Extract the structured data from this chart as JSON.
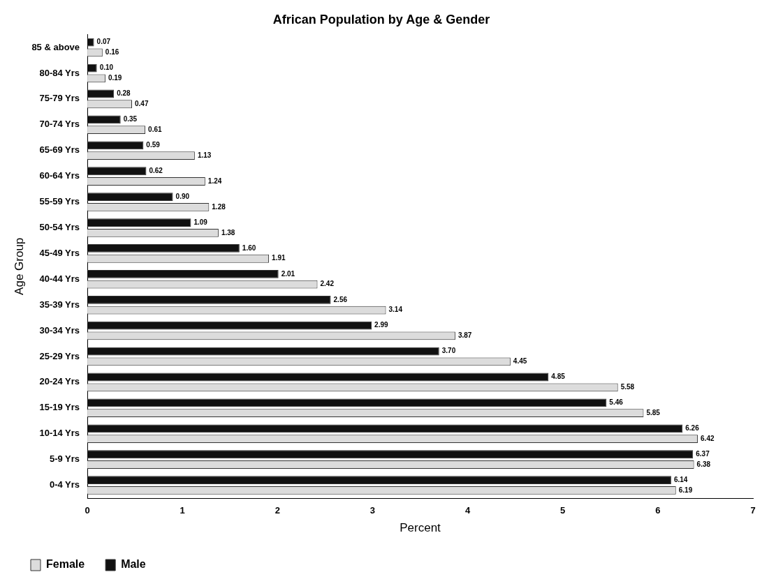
{
  "chart_data": {
    "type": "bar",
    "orientation": "horizontal",
    "title": "African Population by Age & Gender",
    "xlabel": "Percent",
    "ylabel": "Age Group",
    "categories": [
      "85 & above",
      "80-84 Yrs",
      "75-79 Yrs",
      "70-74 Yrs",
      "65-69 Yrs",
      "60-64 Yrs",
      "55-59 Yrs",
      "50-54 Yrs",
      "45-49 Yrs",
      "40-44 Yrs",
      "35-39 Yrs",
      "30-34 Yrs",
      "25-29 Yrs",
      "20-24 Yrs",
      "15-19 Yrs",
      "10-14 Yrs",
      "5-9 Yrs",
      "0-4 Yrs"
    ],
    "series": [
      {
        "name": "Male",
        "color": "#111111",
        "values": [
          0.07,
          0.1,
          0.28,
          0.35,
          0.59,
          0.62,
          0.9,
          1.09,
          1.6,
          2.01,
          2.56,
          2.99,
          3.7,
          4.85,
          5.46,
          6.26,
          6.37,
          6.14
        ],
        "value_labels": [
          "0.07",
          "0.10",
          "0.28",
          "0.35",
          "0.59",
          "0.62",
          "0.90",
          "1.09",
          "1.60",
          "2.01",
          "2.56",
          "2.99",
          "3.70",
          "4.85",
          "5.46",
          "6.26",
          "6.37",
          "6.14"
        ]
      },
      {
        "name": "Female",
        "color": "#dcdcdc",
        "values": [
          0.16,
          0.19,
          0.47,
          0.61,
          1.13,
          1.24,
          1.28,
          1.38,
          1.91,
          2.42,
          3.14,
          3.87,
          4.45,
          5.58,
          5.85,
          6.42,
          6.38,
          6.19
        ],
        "value_labels": [
          "0.16",
          "0.19",
          "0.47",
          "0.61",
          "1.13",
          "1.24",
          "1.28",
          "1.38",
          "1.91",
          "2.42",
          "3.14",
          "3.87",
          "4.45",
          "5.58",
          "5.85",
          "6.42",
          "6.38",
          "6.19"
        ]
      }
    ],
    "xlim": [
      0,
      7
    ],
    "xticks": [
      0,
      1,
      2,
      3,
      4,
      5,
      6,
      7
    ],
    "grid": false,
    "legend": "bottom left"
  }
}
